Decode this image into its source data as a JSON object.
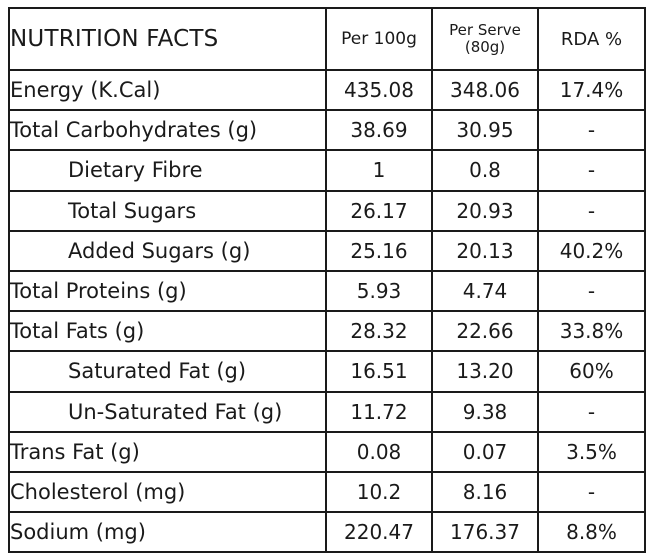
{
  "header": {
    "title": "NUTRITION FACTS",
    "per100": "Per 100g",
    "perServe_line1": "Per Serve",
    "perServe_line2": "(80g)",
    "rda": "RDA %"
  },
  "rows": [
    {
      "label": "Energy (K.Cal)",
      "per100": "435.08",
      "perServe": "348.06",
      "rda": "17.4%"
    },
    {
      "label": "Total Carbohydrates (g)",
      "per100": "38.69",
      "perServe": "30.95",
      "rda": "-"
    },
    {
      "label": "Dietary Fibre",
      "per100": "1",
      "perServe": "0.8",
      "rda": "-"
    },
    {
      "label": "Total Sugars",
      "per100": "26.17",
      "perServe": "20.93",
      "rda": "-"
    },
    {
      "label": "Added Sugars (g)",
      "per100": "25.16",
      "perServe": "20.13",
      "rda": "40.2%"
    },
    {
      "label": "Total Proteins (g)",
      "per100": "5.93",
      "perServe": "4.74",
      "rda": "-"
    },
    {
      "label": "Total Fats (g)",
      "per100": "28.32",
      "perServe": "22.66",
      "rda": "33.8%"
    },
    {
      "label": "Saturated Fat (g)",
      "per100": "16.51",
      "perServe": "13.20",
      "rda": "60%"
    },
    {
      "label": "Un-Saturated Fat (g)",
      "per100": "11.72",
      "perServe": "9.38",
      "rda": "-"
    },
    {
      "label": "Trans Fat (g)",
      "per100": "0.08",
      "perServe": "0.07",
      "rda": "3.5%"
    },
    {
      "label": "Cholesterol (mg)",
      "per100": "10.2",
      "perServe": "8.16",
      "rda": "-"
    },
    {
      "label": "Sodium (mg)",
      "per100": "220.47",
      "perServe": "176.37",
      "rda": "8.8%"
    }
  ]
}
